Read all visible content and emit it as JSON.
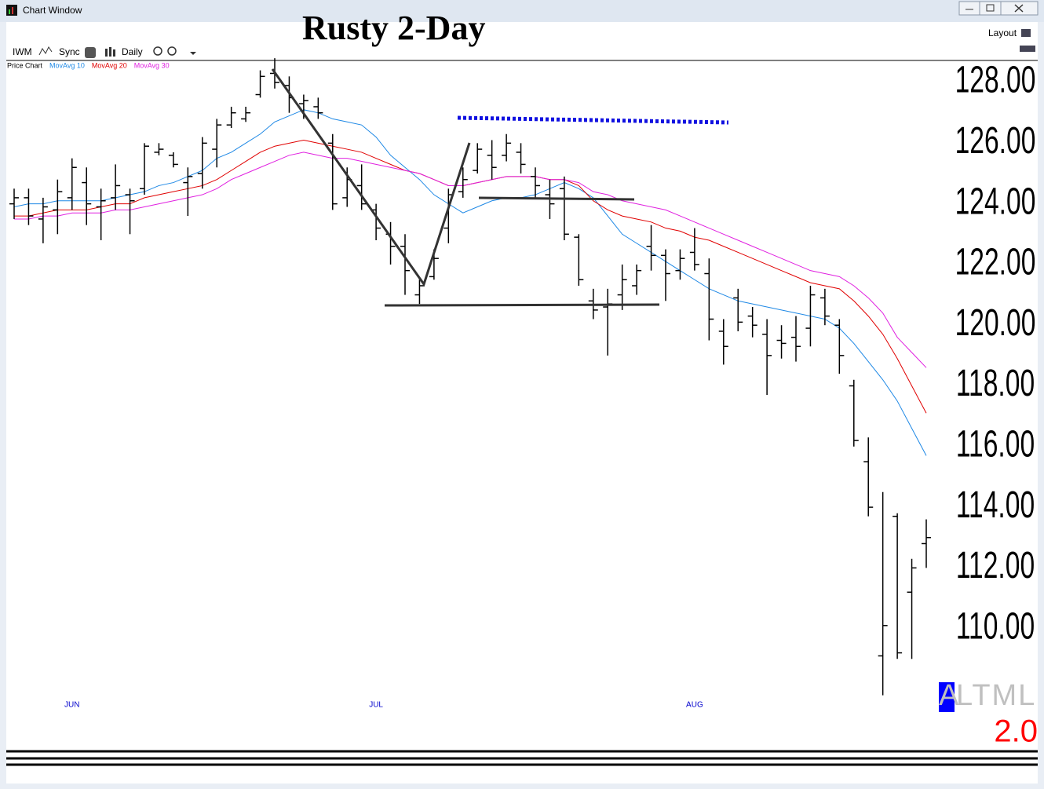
{
  "window": {
    "title": "Chart Window",
    "toolbar": {
      "symbol": "IWM",
      "sync": "Sync",
      "period": "Daily",
      "layout": "Layout"
    }
  },
  "chart_data": {
    "type": "ohlc",
    "title": "Rusty 2-Day",
    "categories": [
      null,
      null,
      null,
      null,
      "JUN",
      null,
      null,
      null,
      null,
      null,
      null,
      null,
      null,
      null,
      null,
      null,
      null,
      null,
      null,
      null,
      null,
      null,
      null,
      null,
      null,
      "JUL",
      null,
      null,
      null,
      null,
      null,
      null,
      null,
      null,
      null,
      null,
      null,
      null,
      null,
      null,
      null,
      null,
      null,
      null,
      null,
      null,
      null,
      "AUG",
      null,
      null,
      null,
      null,
      null,
      null,
      null,
      null,
      null,
      null,
      null,
      null,
      null,
      null,
      null,
      null
    ],
    "price": {
      "name": "Price Chart",
      "color": "#000000",
      "open": [
        124.0,
        124.2,
        123.5,
        123.8,
        124.2,
        124.7,
        123.9,
        124.2,
        124.3,
        124.5,
        125.7,
        125.6,
        124.7,
        125.0,
        125.8,
        126.6,
        126.8,
        127.6,
        128.3,
        127.9,
        127.3,
        127.2,
        126.0,
        124.2,
        124.6,
        123.8,
        123.0,
        122.6,
        121.0,
        121.6,
        123.2,
        124.4,
        125.1,
        125.6,
        125.6,
        125.7,
        124.9,
        124.3,
        124.5,
        122.9,
        120.8,
        120.6,
        121.0,
        121.3,
        122.6,
        122.3,
        121.8,
        122.4,
        121.7,
        119.8,
        120.9,
        120.3,
        119.7,
        119.5,
        119.6,
        119.9,
        120.9,
        120.0,
        118.0,
        115.5,
        109.1,
        113.7,
        111.2,
        112.8
      ],
      "high": [
        124.5,
        124.5,
        124.2,
        124.8,
        125.5,
        125.2,
        124.5,
        125.3,
        124.5,
        126.0,
        126.0,
        125.7,
        125.2,
        126.2,
        126.8,
        127.2,
        127.2,
        128.4,
        128.8,
        128.2,
        127.6,
        127.5,
        126.3,
        125.2,
        125.3,
        124.0,
        123.4,
        123.0,
        121.5,
        122.5,
        124.5,
        125.2,
        126.0,
        126.1,
        126.3,
        126.0,
        125.2,
        124.8,
        124.9,
        123.0,
        121.2,
        121.2,
        122.0,
        122.0,
        123.3,
        122.5,
        122.5,
        123.2,
        122.2,
        120.2,
        121.2,
        120.6,
        120.2,
        120.0,
        120.3,
        121.3,
        121.2,
        120.2,
        118.2,
        116.3,
        114.5,
        113.8,
        112.3,
        113.6
      ],
      "low": [
        123.5,
        123.3,
        122.7,
        123.0,
        123.8,
        123.3,
        122.8,
        123.8,
        123.0,
        124.3,
        125.6,
        125.2,
        123.6,
        124.5,
        125.2,
        126.5,
        126.7,
        127.5,
        127.8,
        127.0,
        126.8,
        126.8,
        123.8,
        123.9,
        123.8,
        122.8,
        122.0,
        121.0,
        120.7,
        121.5,
        122.7,
        124.2,
        125.0,
        124.8,
        125.4,
        125.0,
        124.2,
        123.5,
        122.8,
        121.3,
        120.2,
        119.0,
        120.5,
        121.0,
        121.8,
        120.8,
        121.5,
        121.8,
        119.5,
        118.7,
        119.8,
        119.6,
        117.7,
        118.9,
        118.8,
        119.3,
        120.0,
        118.4,
        116.0,
        113.7,
        107.8,
        109.0,
        109.0,
        112.0
      ],
      "close": [
        124.2,
        123.6,
        123.9,
        124.4,
        125.2,
        124.0,
        124.1,
        124.6,
        124.1,
        125.9,
        125.8,
        125.3,
        124.9,
        126.0,
        126.6,
        127.0,
        127.0,
        128.2,
        128.0,
        127.5,
        127.4,
        127.0,
        124.0,
        124.8,
        124.0,
        123.2,
        122.6,
        121.8,
        121.3,
        122.2,
        124.3,
        124.8,
        125.8,
        125.2,
        126.0,
        125.3,
        124.6,
        124.0,
        123.0,
        121.5,
        120.5,
        120.7,
        121.5,
        121.8,
        122.3,
        121.7,
        122.2,
        122.0,
        120.2,
        119.3,
        120.1,
        120.0,
        119.0,
        119.4,
        119.3,
        121.0,
        120.3,
        119.0,
        116.2,
        114.0,
        110.1,
        109.2,
        112.0,
        113.0
      ]
    },
    "series": [
      {
        "name": "MovAvg 10",
        "color": "#1e88e5",
        "values": [
          123.9,
          124.0,
          124.0,
          124.1,
          124.1,
          124.1,
          124.1,
          124.2,
          124.3,
          124.4,
          124.6,
          124.7,
          124.9,
          125.1,
          125.5,
          125.7,
          126.0,
          126.3,
          126.7,
          126.9,
          127.1,
          127.0,
          126.8,
          126.7,
          126.6,
          126.2,
          125.6,
          125.2,
          124.8,
          124.3,
          124.0,
          123.7,
          123.9,
          124.1,
          124.2,
          124.2,
          124.3,
          124.5,
          124.7,
          124.5,
          124.2,
          123.6,
          123.0,
          122.7,
          122.4,
          122.1,
          121.8,
          121.5,
          121.2,
          121.0,
          120.8,
          120.7,
          120.6,
          120.5,
          120.4,
          120.3,
          120.2,
          119.9,
          119.4,
          118.8,
          118.2,
          117.5,
          116.6,
          115.7
        ]
      },
      {
        "name": "MovAvg 20",
        "color": "#e00000",
        "values": [
          123.6,
          123.6,
          123.7,
          123.8,
          123.8,
          123.8,
          123.9,
          124.0,
          124.0,
          124.2,
          124.3,
          124.4,
          124.5,
          124.6,
          124.8,
          125.1,
          125.4,
          125.7,
          125.9,
          126.0,
          126.1,
          126.0,
          125.9,
          125.8,
          125.7,
          125.5,
          125.3,
          125.1,
          125.0,
          124.8,
          124.6,
          124.6,
          124.7,
          124.8,
          124.9,
          124.9,
          124.9,
          124.8,
          124.8,
          124.6,
          124.1,
          123.8,
          123.6,
          123.5,
          123.4,
          123.2,
          123.1,
          122.9,
          122.8,
          122.6,
          122.4,
          122.2,
          122.0,
          121.8,
          121.6,
          121.4,
          121.3,
          121.2,
          120.8,
          120.3,
          119.7,
          118.9,
          118.0,
          117.1
        ]
      },
      {
        "name": "MovAvg 30",
        "color": "#e020e0",
        "values": [
          123.5,
          123.5,
          123.6,
          123.6,
          123.7,
          123.7,
          123.7,
          123.8,
          123.8,
          123.9,
          124.0,
          124.1,
          124.2,
          124.3,
          124.5,
          124.8,
          125.0,
          125.2,
          125.4,
          125.6,
          125.7,
          125.6,
          125.5,
          125.5,
          125.4,
          125.3,
          125.2,
          125.1,
          125.0,
          124.8,
          124.6,
          124.6,
          124.7,
          124.8,
          124.9,
          124.9,
          124.9,
          124.8,
          124.8,
          124.7,
          124.4,
          124.3,
          124.1,
          124.0,
          123.9,
          123.8,
          123.6,
          123.4,
          123.2,
          123.0,
          122.8,
          122.6,
          122.4,
          122.2,
          122.0,
          121.8,
          121.7,
          121.6,
          121.3,
          120.9,
          120.4,
          119.6,
          119.1,
          118.6
        ]
      }
    ],
    "ylim": [
      107.3,
      128.7
    ],
    "yticks": [
      {
        "value": 110,
        "label": "110.00"
      },
      {
        "value": 112,
        "label": "112.00"
      },
      {
        "value": 114,
        "label": "114.00"
      },
      {
        "value": 116,
        "label": "116.00"
      },
      {
        "value": 118,
        "label": "118.00"
      },
      {
        "value": 120,
        "label": "120.00"
      },
      {
        "value": 122,
        "label": "122.00"
      },
      {
        "value": 124,
        "label": "124.00"
      },
      {
        "value": 126,
        "label": "126.00"
      },
      {
        "value": 128,
        "label": "128.00"
      }
    ],
    "watermark": {
      "first": "A",
      "rest": "LTML",
      "version": "2.0"
    }
  }
}
